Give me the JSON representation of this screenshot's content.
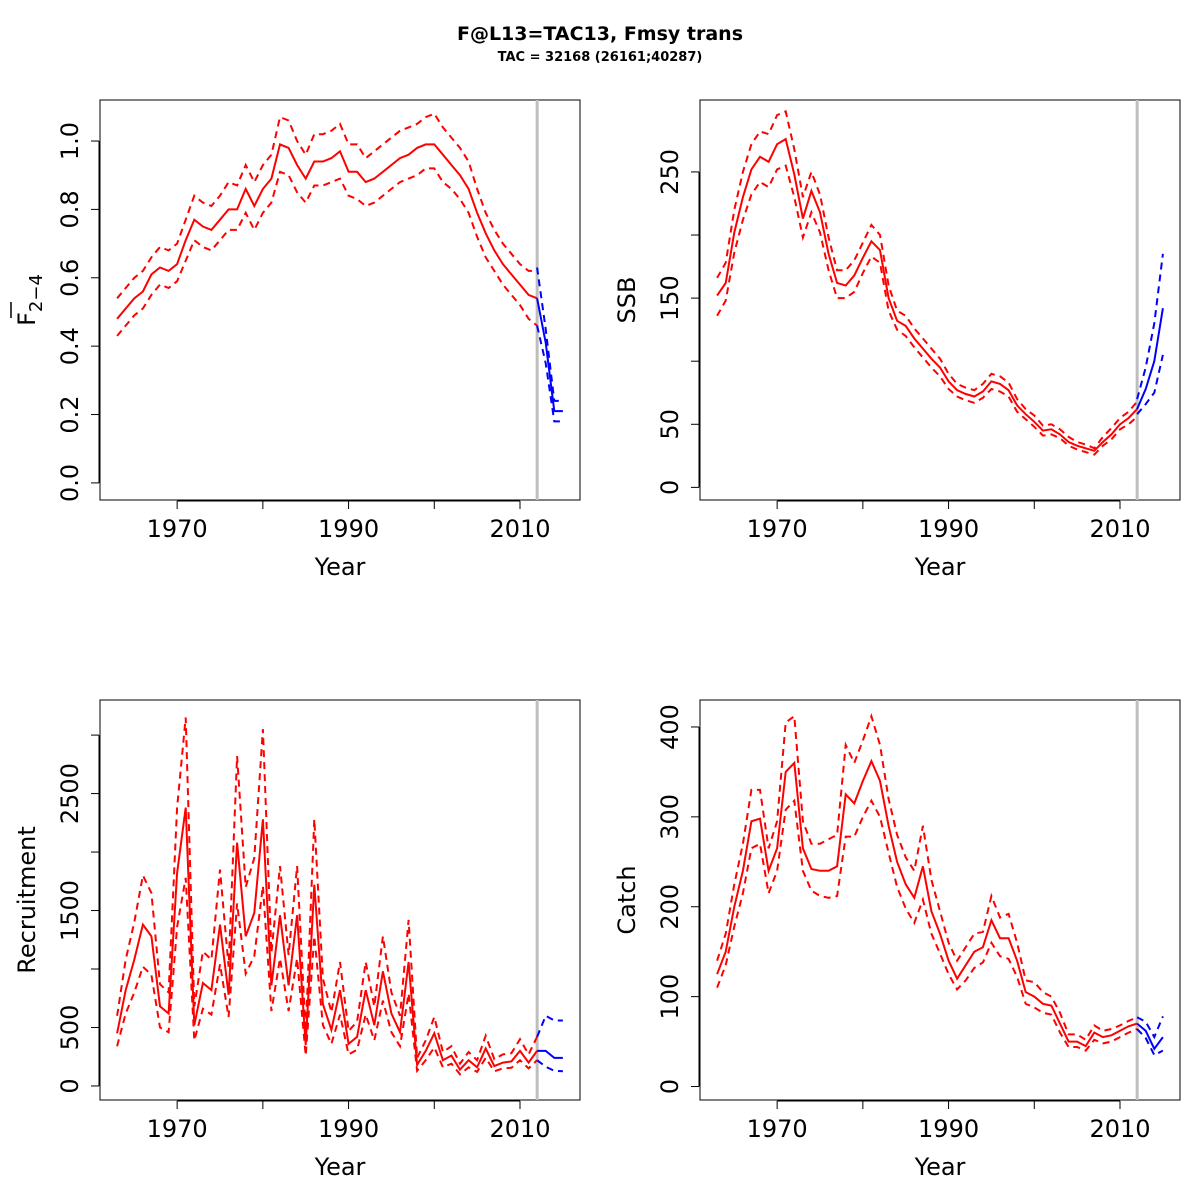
{
  "figure": {
    "title": "F@L13=TAC13, Fmsy trans",
    "subtitle": "TAC = 32168 (26161;40287)"
  },
  "colors": {
    "history": "#ff0000",
    "forecast": "#0000ff",
    "vline": "#bebebe"
  },
  "chart_data": [
    {
      "type": "line",
      "id": "fbar",
      "ylabel_main": "F",
      "ylabel_sub": "2−4",
      "xlabel": "Year",
      "xlim": [
        1961,
        2017
      ],
      "ylim": [
        -0.05,
        1.12
      ],
      "x_ticks": [
        1970,
        1980,
        1990,
        2000,
        2010
      ],
      "x_tick_labels": [
        "1970",
        "",
        "1990",
        "",
        "2010"
      ],
      "y_ticks": [
        0.0,
        0.2,
        0.4,
        0.6,
        0.8,
        1.0
      ],
      "y_tick_labels": [
        "0.0",
        "0.2",
        "0.4",
        "0.6",
        "0.8",
        "1.0"
      ],
      "vline": 2012,
      "x": [
        1963,
        1964,
        1965,
        1966,
        1967,
        1968,
        1969,
        1970,
        1971,
        1972,
        1973,
        1974,
        1975,
        1976,
        1977,
        1978,
        1979,
        1980,
        1981,
        1982,
        1983,
        1984,
        1985,
        1986,
        1987,
        1988,
        1989,
        1990,
        1991,
        1992,
        1993,
        1994,
        1995,
        1996,
        1997,
        1998,
        1999,
        2000,
        2001,
        2002,
        2003,
        2004,
        2005,
        2006,
        2007,
        2008,
        2009,
        2010,
        2011,
        2012
      ],
      "series": [
        {
          "role": "estimate",
          "values": [
            0.48,
            0.51,
            0.54,
            0.56,
            0.61,
            0.63,
            0.62,
            0.64,
            0.71,
            0.77,
            0.75,
            0.74,
            0.77,
            0.8,
            0.8,
            0.86,
            0.81,
            0.86,
            0.89,
            0.99,
            0.98,
            0.93,
            0.89,
            0.94,
            0.94,
            0.95,
            0.97,
            0.91,
            0.91,
            0.88,
            0.89,
            0.91,
            0.93,
            0.95,
            0.96,
            0.98,
            0.99,
            0.99,
            0.96,
            0.93,
            0.9,
            0.86,
            0.79,
            0.73,
            0.68,
            0.64,
            0.61,
            0.58,
            0.55,
            0.54
          ]
        },
        {
          "role": "upper",
          "values": [
            0.54,
            0.57,
            0.6,
            0.62,
            0.66,
            0.69,
            0.68,
            0.7,
            0.77,
            0.84,
            0.82,
            0.81,
            0.84,
            0.88,
            0.87,
            0.93,
            0.88,
            0.93,
            0.96,
            1.07,
            1.06,
            1.0,
            0.96,
            1.02,
            1.02,
            1.03,
            1.05,
            0.99,
            0.99,
            0.95,
            0.97,
            0.99,
            1.01,
            1.03,
            1.04,
            1.05,
            1.07,
            1.08,
            1.04,
            1.01,
            0.98,
            0.94,
            0.86,
            0.79,
            0.74,
            0.7,
            0.67,
            0.64,
            0.62,
            0.62
          ]
        },
        {
          "role": "lower",
          "values": [
            0.43,
            0.46,
            0.49,
            0.51,
            0.55,
            0.58,
            0.57,
            0.59,
            0.65,
            0.71,
            0.69,
            0.68,
            0.71,
            0.74,
            0.74,
            0.79,
            0.74,
            0.79,
            0.82,
            0.91,
            0.9,
            0.85,
            0.82,
            0.87,
            0.87,
            0.88,
            0.89,
            0.84,
            0.83,
            0.81,
            0.82,
            0.84,
            0.86,
            0.88,
            0.89,
            0.9,
            0.92,
            0.92,
            0.88,
            0.86,
            0.83,
            0.79,
            0.72,
            0.66,
            0.62,
            0.58,
            0.55,
            0.52,
            0.48,
            0.46
          ]
        }
      ],
      "forecast": {
        "x": [
          2012,
          2013,
          2014,
          2015
        ],
        "estimate": [
          0.54,
          0.41,
          0.21,
          0.21
        ],
        "upper": [
          0.63,
          0.45,
          0.24,
          0.24
        ],
        "lower": [
          0.46,
          0.35,
          0.18,
          0.18
        ]
      }
    },
    {
      "type": "line",
      "id": "ssb",
      "ylabel": "SSB",
      "xlabel": "Year",
      "xlim": [
        1961,
        2017
      ],
      "ylim": [
        -10,
        307
      ],
      "x_ticks": [
        1970,
        1980,
        1990,
        2000,
        2010
      ],
      "x_tick_labels": [
        "1970",
        "",
        "1990",
        "",
        "2010"
      ],
      "y_ticks": [
        0,
        50,
        100,
        150,
        200,
        250
      ],
      "y_tick_labels": [
        "0",
        "50",
        "",
        "150",
        "",
        "250"
      ],
      "vline": 2012,
      "x": [
        1963,
        1964,
        1965,
        1966,
        1967,
        1968,
        1969,
        1970,
        1971,
        1972,
        1973,
        1974,
        1975,
        1976,
        1977,
        1978,
        1979,
        1980,
        1981,
        1982,
        1983,
        1984,
        1985,
        1986,
        1987,
        1988,
        1989,
        1990,
        1991,
        1992,
        1993,
        1994,
        1995,
        1996,
        1997,
        1998,
        1999,
        2000,
        2001,
        2002,
        2003,
        2004,
        2005,
        2006,
        2007,
        2008,
        2009,
        2010,
        2011,
        2012
      ],
      "series": [
        {
          "role": "estimate",
          "values": [
            152,
            162,
            202,
            230,
            252,
            262,
            258,
            272,
            276,
            248,
            213,
            235,
            218,
            185,
            162,
            160,
            168,
            182,
            195,
            188,
            150,
            132,
            128,
            118,
            110,
            102,
            95,
            84,
            77,
            74,
            72,
            76,
            84,
            82,
            77,
            65,
            58,
            52,
            45,
            46,
            42,
            36,
            33,
            31,
            29,
            36,
            42,
            50,
            55,
            62
          ]
        },
        {
          "role": "upper",
          "values": [
            166,
            178,
            220,
            250,
            272,
            282,
            280,
            295,
            298,
            268,
            230,
            250,
            232,
            198,
            172,
            172,
            180,
            194,
            208,
            200,
            160,
            140,
            136,
            126,
            118,
            110,
            102,
            90,
            82,
            79,
            77,
            82,
            90,
            88,
            83,
            70,
            62,
            57,
            49,
            50,
            46,
            40,
            36,
            34,
            31,
            40,
            47,
            55,
            60,
            68
          ]
        },
        {
          "role": "lower",
          "values": [
            136,
            148,
            186,
            212,
            232,
            242,
            238,
            252,
            255,
            230,
            198,
            218,
            202,
            172,
            150,
            150,
            155,
            170,
            183,
            178,
            140,
            125,
            120,
            111,
            103,
            95,
            88,
            78,
            72,
            69,
            67,
            71,
            78,
            76,
            72,
            60,
            54,
            48,
            41,
            42,
            39,
            33,
            30,
            28,
            26,
            33,
            38,
            46,
            50,
            56
          ]
        }
      ],
      "forecast": {
        "x": [
          2012,
          2013,
          2014,
          2015
        ],
        "estimate": [
          62,
          78,
          100,
          142
        ],
        "upper": [
          70,
          95,
          130,
          185
        ],
        "lower": [
          58,
          66,
          75,
          105
        ]
      }
    },
    {
      "type": "line",
      "id": "recruitment",
      "ylabel": "Recruitment",
      "xlabel": "Year",
      "xlim": [
        1961,
        2017
      ],
      "ylim": [
        -120,
        3300
      ],
      "x_ticks": [
        1970,
        1980,
        1990,
        2000,
        2010
      ],
      "x_tick_labels": [
        "1970",
        "",
        "1990",
        "",
        "2010"
      ],
      "y_ticks": [
        0,
        500,
        1000,
        1500,
        2000,
        2500,
        3000
      ],
      "y_tick_labels": [
        "0",
        "500",
        "",
        "1500",
        "",
        "2500",
        ""
      ],
      "vline": 2012,
      "x": [
        1963,
        1964,
        1965,
        1966,
        1967,
        1968,
        1969,
        1970,
        1971,
        1972,
        1973,
        1974,
        1975,
        1976,
        1977,
        1978,
        1979,
        1980,
        1981,
        1982,
        1983,
        1984,
        1985,
        1986,
        1987,
        1988,
        1989,
        1990,
        1991,
        1992,
        1993,
        1994,
        1995,
        1996,
        1997,
        1998,
        1999,
        2000,
        2001,
        2002,
        2003,
        2004,
        2005,
        2006,
        2007,
        2008,
        2009,
        2010,
        2011,
        2012
      ],
      "series": [
        {
          "role": "estimate",
          "values": [
            450,
            820,
            1080,
            1380,
            1280,
            680,
            620,
            1820,
            2380,
            520,
            880,
            820,
            1380,
            780,
            2080,
            1280,
            1480,
            2280,
            860,
            1460,
            860,
            1460,
            350,
            1720,
            700,
            480,
            820,
            360,
            420,
            820,
            520,
            980,
            620,
            460,
            1060,
            180,
            300,
            450,
            220,
            260,
            140,
            220,
            160,
            320,
            170,
            200,
            210,
            300,
            200,
            300
          ]
        },
        {
          "role": "upper",
          "values": [
            600,
            1080,
            1400,
            1800,
            1650,
            870,
            800,
            2380,
            3150,
            680,
            1150,
            1080,
            1850,
            1020,
            2820,
            1700,
            1950,
            3050,
            1140,
            1880,
            1120,
            1880,
            460,
            2280,
            920,
            630,
            1060,
            470,
            550,
            1060,
            680,
            1280,
            800,
            600,
            1420,
            240,
            390,
            590,
            290,
            340,
            190,
            290,
            220,
            430,
            230,
            270,
            280,
            400,
            270,
            420
          ]
        },
        {
          "role": "lower",
          "values": [
            340,
            620,
            800,
            1020,
            950,
            500,
            460,
            1360,
            1780,
            390,
            660,
            610,
            1040,
            590,
            1560,
            960,
            1110,
            1710,
            640,
            1090,
            640,
            1090,
            260,
            1280,
            520,
            360,
            610,
            270,
            310,
            610,
            390,
            730,
            460,
            340,
            790,
            130,
            220,
            330,
            160,
            190,
            100,
            160,
            120,
            240,
            125,
            150,
            155,
            220,
            150,
            220
          ]
        }
      ],
      "forecast": {
        "x": [
          2012,
          2013,
          2014,
          2015
        ],
        "estimate": [
          300,
          300,
          240,
          240
        ],
        "upper": [
          420,
          600,
          560,
          560
        ],
        "lower": [
          220,
          165,
          130,
          125
        ]
      }
    },
    {
      "type": "line",
      "id": "catch",
      "ylabel": "Catch",
      "xlabel": "Year",
      "xlim": [
        1961,
        2017
      ],
      "ylim": [
        -15,
        430
      ],
      "x_ticks": [
        1970,
        1980,
        1990,
        2000,
        2010
      ],
      "x_tick_labels": [
        "1970",
        "",
        "1990",
        "",
        "2010"
      ],
      "y_ticks": [
        0,
        100,
        200,
        300,
        400
      ],
      "y_tick_labels": [
        "0",
        "100",
        "200",
        "300",
        "400"
      ],
      "vline": 2012,
      "x": [
        1963,
        1964,
        1965,
        1966,
        1967,
        1968,
        1969,
        1970,
        1971,
        1972,
        1973,
        1974,
        1975,
        1976,
        1977,
        1978,
        1979,
        1980,
        1981,
        1982,
        1983,
        1984,
        1985,
        1986,
        1987,
        1988,
        1989,
        1990,
        1991,
        1992,
        1993,
        1994,
        1995,
        1996,
        1997,
        1998,
        1999,
        2000,
        2001,
        2002,
        2003,
        2004,
        2005,
        2006,
        2007,
        2008,
        2009,
        2010,
        2011,
        2012
      ],
      "series": [
        {
          "role": "estimate",
          "values": [
            125,
            150,
            200,
            240,
            295,
            298,
            240,
            265,
            350,
            360,
            265,
            242,
            240,
            240,
            245,
            325,
            315,
            340,
            362,
            340,
            290,
            250,
            225,
            210,
            245,
            195,
            170,
            140,
            120,
            135,
            150,
            155,
            185,
            165,
            165,
            140,
            105,
            100,
            92,
            90,
            70,
            50,
            50,
            45,
            60,
            55,
            57,
            62,
            67,
            70
          ]
        },
        {
          "role": "upper",
          "values": [
            140,
            170,
            225,
            270,
            330,
            330,
            265,
            295,
            405,
            412,
            295,
            270,
            270,
            275,
            280,
            380,
            360,
            385,
            412,
            380,
            320,
            280,
            255,
            240,
            290,
            230,
            195,
            160,
            140,
            155,
            170,
            172,
            212,
            188,
            192,
            160,
            118,
            116,
            105,
            100,
            82,
            58,
            58,
            52,
            68,
            62,
            64,
            68,
            73,
            77
          ]
        },
        {
          "role": "lower",
          "values": [
            110,
            135,
            178,
            215,
            265,
            270,
            215,
            240,
            308,
            318,
            240,
            218,
            212,
            210,
            212,
            278,
            278,
            300,
            318,
            300,
            260,
            222,
            198,
            182,
            208,
            170,
            148,
            125,
            108,
            118,
            132,
            138,
            160,
            145,
            142,
            122,
            92,
            88,
            82,
            80,
            60,
            44,
            44,
            40,
            52,
            48,
            50,
            55,
            60,
            64
          ]
        }
      ],
      "forecast": {
        "x": [
          2012,
          2013,
          2014,
          2015
        ],
        "estimate": [
          70,
          62,
          42,
          55
        ],
        "upper": [
          77,
          72,
          55,
          78
        ],
        "lower": [
          64,
          54,
          35,
          40
        ]
      }
    }
  ]
}
